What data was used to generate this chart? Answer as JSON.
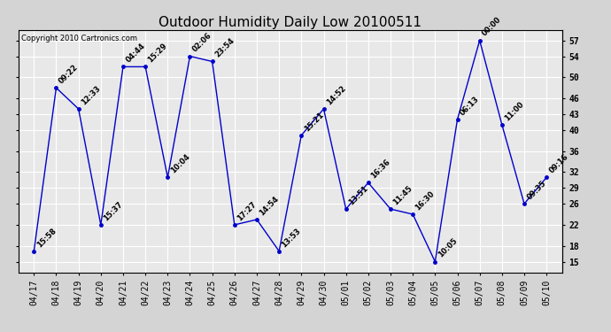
{
  "title": "Outdoor Humidity Daily Low 20100511",
  "copyright": "Copyright 2010 Cartronics.com",
  "x_labels": [
    "04/17",
    "04/18",
    "04/19",
    "04/20",
    "04/21",
    "04/22",
    "04/23",
    "04/24",
    "04/25",
    "04/26",
    "04/27",
    "04/28",
    "04/29",
    "04/30",
    "05/01",
    "05/02",
    "05/03",
    "05/04",
    "05/05",
    "05/06",
    "05/07",
    "05/08",
    "05/09",
    "05/10"
  ],
  "y_values": [
    17,
    48,
    44,
    22,
    52,
    52,
    31,
    54,
    53,
    22,
    23,
    17,
    39,
    44,
    25,
    30,
    25,
    24,
    15,
    42,
    57,
    41,
    26,
    31
  ],
  "time_labels": [
    "15:58",
    "09:22",
    "12:33",
    "15:37",
    "04:44",
    "15:29",
    "10:04",
    "02:06",
    "23:54",
    "17:27",
    "14:54",
    "13:53",
    "15:21",
    "14:52",
    "13:51",
    "16:36",
    "11:45",
    "16:30",
    "10:05",
    "06:13",
    "00:00",
    "11:00",
    "09:35",
    "09:16"
  ],
  "y_ticks": [
    15,
    18,
    22,
    26,
    29,
    32,
    36,
    40,
    43,
    46,
    50,
    54,
    57
  ],
  "ylim": [
    13,
    59
  ],
  "line_color": "#0000cc",
  "marker_color": "#0000cc",
  "bg_color": "#d4d4d4",
  "plot_bg": "#e8e8e8",
  "grid_color": "#ffffff",
  "title_fontsize": 11,
  "label_fontsize": 6,
  "tick_fontsize": 7,
  "copyright_fontsize": 6
}
